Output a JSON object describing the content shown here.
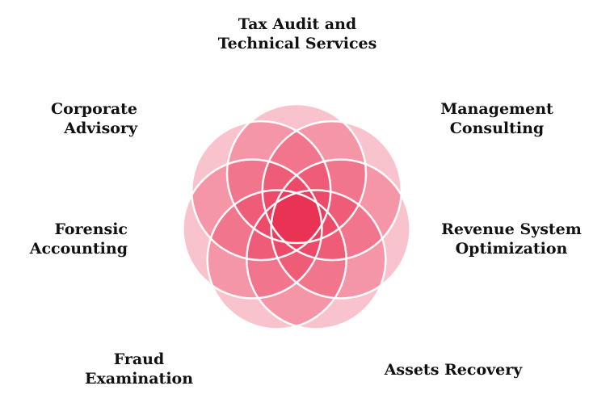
{
  "petals": [
    {
      "id": "tax-audit",
      "lines": [
        "Tax Audit and",
        "Technical Services"
      ]
    },
    {
      "id": "management-consulting",
      "lines": [
        "Management",
        "Consulting"
      ]
    },
    {
      "id": "revenue-optimization",
      "lines": [
        "Revenue System",
        "Optimization"
      ]
    },
    {
      "id": "assets-recovery",
      "lines": [
        "Assets Recovery"
      ]
    },
    {
      "id": "fraud-examination",
      "lines": [
        "Fraud",
        "Examination"
      ]
    },
    {
      "id": "forensic-accounting",
      "lines": [
        "Forensic",
        "Accounting"
      ]
    },
    {
      "id": "corporate-advisory",
      "lines": [
        "Corporate",
        "Advisory"
      ]
    }
  ],
  "colors": {
    "petal_fill": "#e8173d",
    "petal_stroke": "#ffffff",
    "text": "#111111",
    "background": "#ffffff"
  }
}
